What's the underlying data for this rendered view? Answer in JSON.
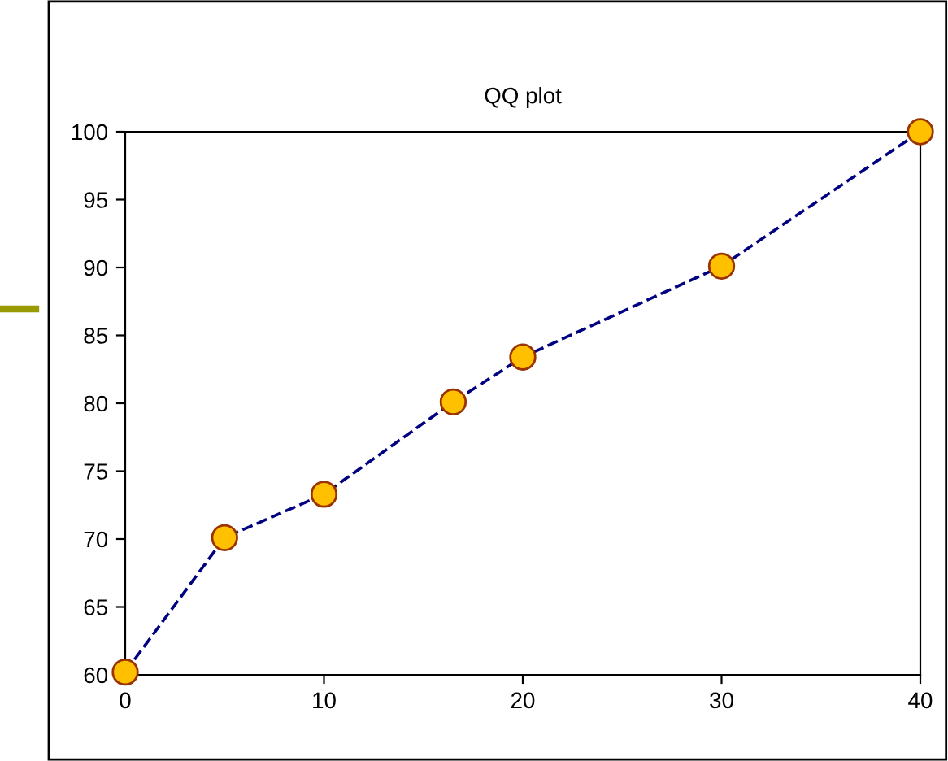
{
  "chart_data": {
    "type": "line",
    "title": "QQ plot",
    "x": [
      0,
      5,
      10,
      16.5,
      20,
      30,
      40
    ],
    "series": [
      {
        "color": "#000080",
        "values": [
          60.2,
          70.1,
          73.3,
          80.1,
          83.4,
          90.1,
          100
        ],
        "colors": [
          "#ffc000",
          "#ffc000",
          "#ffc000",
          "#ffc000",
          "#ffc000",
          "#ffc000",
          "#ffc000"
        ]
      }
    ],
    "xlim": [
      0,
      40
    ],
    "ylim": [
      60,
      100
    ],
    "xticks": [
      0,
      10,
      20,
      30,
      40
    ],
    "yticks": [
      60,
      65,
      70,
      75,
      80,
      85,
      90,
      95,
      100
    ],
    "grid": false,
    "legend": false,
    "marker": "circle",
    "line_style": "dashed"
  }
}
